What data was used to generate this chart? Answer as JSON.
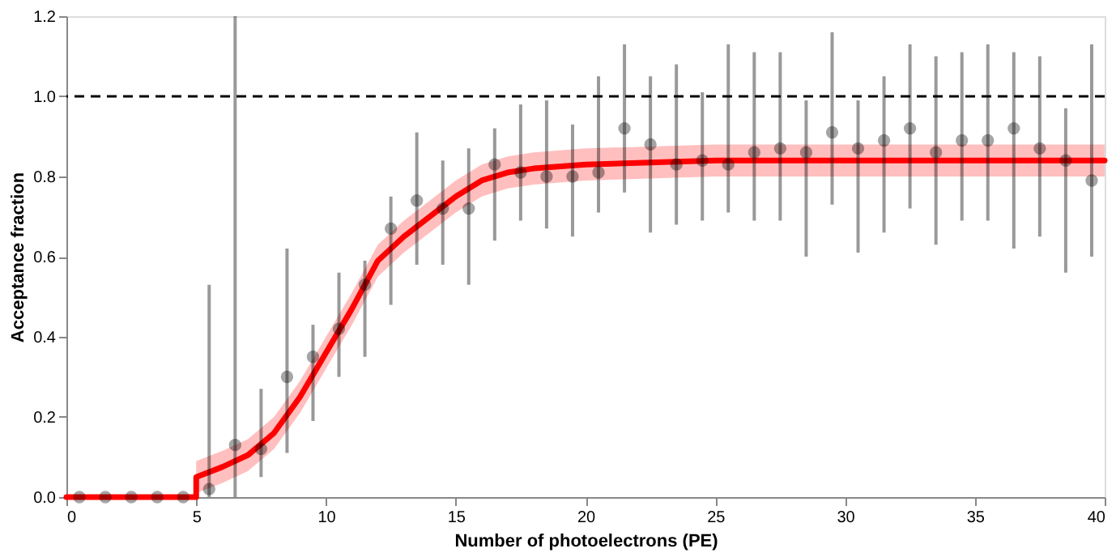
{
  "chart_data": {
    "type": "scatter",
    "xlabel": "Number of photoelectrons (PE)",
    "ylabel": "Acceptance fraction",
    "xlim": [
      0,
      40
    ],
    "ylim": [
      0,
      1.2
    ],
    "xticks": [
      0,
      5,
      10,
      15,
      20,
      25,
      30,
      35,
      40
    ],
    "yticks": [
      {
        "value": 0,
        "label": "0.0"
      },
      0.2,
      0.4,
      0.6,
      0.8,
      {
        "value": 1,
        "label": "1.0"
      },
      1.2
    ],
    "grid": false,
    "marker": "circle",
    "ref_lines": [
      {
        "axis": "y",
        "value": 1.0,
        "color": "#000000",
        "line_style": "dashed"
      }
    ],
    "series": [
      {
        "color": "#000000",
        "x": [
          0.5,
          1.5,
          2.5,
          3.5,
          4.5,
          5.5,
          6.5,
          7.5,
          8.5,
          9.5,
          10.5,
          11.5,
          12.5,
          13.5,
          14.5,
          15.5,
          16.5,
          17.5,
          18.5,
          19.5,
          20.5,
          21.5,
          22.5,
          23.5,
          24.5,
          25.5,
          26.5,
          27.5,
          28.5,
          29.5,
          30.5,
          31.5,
          32.5,
          33.5,
          34.5,
          35.5,
          36.5,
          37.5,
          38.5,
          39.5
        ],
        "values": [
          0,
          0,
          0,
          0,
          0,
          0.02,
          0.13,
          0.12,
          0.3,
          0.35,
          0.42,
          0.53,
          0.67,
          0.74,
          0.72,
          0.72,
          0.83,
          0.81,
          0.8,
          0.8,
          0.81,
          0.92,
          0.88,
          0.83,
          0.84,
          0.83,
          0.86,
          0.87,
          0.86,
          0.91,
          0.87,
          0.89,
          0.92,
          0.86,
          0.89,
          0.89,
          0.92,
          0.87,
          0.84,
          0.79
        ],
        "errors": [
          null,
          null,
          null,
          null,
          null,
          [
            0,
            0.53
          ],
          [
            0,
            1.2
          ],
          [
            0.05,
            0.27
          ],
          [
            0.11,
            0.62
          ],
          [
            0.19,
            0.43
          ],
          [
            0.3,
            0.56
          ],
          [
            0.35,
            0.59
          ],
          [
            0.48,
            0.75
          ],
          [
            0.58,
            0.91
          ],
          [
            0.58,
            0.84
          ],
          [
            0.53,
            0.87
          ],
          [
            0.64,
            0.92
          ],
          [
            0.69,
            0.98
          ],
          [
            0.67,
            0.99
          ],
          [
            0.65,
            0.93
          ],
          [
            0.71,
            1.05
          ],
          [
            0.76,
            1.13
          ],
          [
            0.66,
            1.05
          ],
          [
            0.68,
            1.08
          ],
          [
            0.69,
            1.01
          ],
          [
            0.71,
            1.13
          ],
          [
            0.69,
            1.11
          ],
          [
            0.69,
            1.11
          ],
          [
            0.6,
            0.99
          ],
          [
            0.73,
            1.16
          ],
          [
            0.61,
            0.99
          ],
          [
            0.66,
            1.05
          ],
          [
            0.72,
            1.13
          ],
          [
            0.63,
            1.1
          ],
          [
            0.69,
            1.11
          ],
          [
            0.69,
            1.13
          ],
          [
            0.62,
            1.11
          ],
          [
            0.65,
            1.1
          ],
          [
            0.56,
            0.97
          ],
          [
            0.6,
            1.13
          ]
        ]
      },
      {
        "type": "line",
        "color": "#ff0000",
        "marker": "none",
        "line_style": "solid",
        "x": [
          0,
          5,
          5,
          6,
          7,
          8,
          9,
          10,
          11,
          12,
          13,
          14,
          15,
          16,
          17,
          18,
          20,
          25,
          30,
          40
        ],
        "values": [
          0,
          0,
          0.05,
          0.075,
          0.105,
          0.16,
          0.25,
          0.36,
          0.47,
          0.59,
          0.65,
          0.7,
          0.75,
          0.79,
          0.81,
          0.82,
          0.83,
          0.84,
          0.84,
          0.84
        ],
        "lower": [
          null,
          null,
          0.01,
          0.035,
          0.065,
          0.12,
          0.21,
          0.32,
          0.43,
          0.55,
          0.61,
          0.66,
          0.71,
          0.75,
          0.77,
          0.78,
          0.79,
          0.8,
          0.8,
          0.8
        ],
        "upper": [
          null,
          null,
          0.09,
          0.115,
          0.145,
          0.2,
          0.29,
          0.4,
          0.51,
          0.63,
          0.69,
          0.74,
          0.79,
          0.83,
          0.85,
          0.86,
          0.87,
          0.88,
          0.88,
          0.88
        ]
      }
    ]
  }
}
